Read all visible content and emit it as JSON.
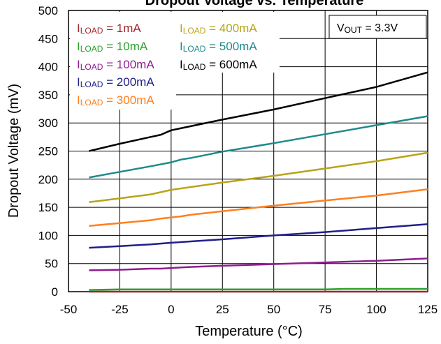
{
  "chart_data": {
    "type": "line",
    "title": "Dropout Voltage vs. Temperature",
    "xlabel": "Temperature (°C)",
    "ylabel": "Dropout Voltage (mV)",
    "xlim": [
      -50,
      125
    ],
    "ylim": [
      0,
      500
    ],
    "x_ticks": [
      "-50",
      "-25",
      "0",
      "25",
      "50",
      "75",
      "100",
      "125"
    ],
    "y_ticks": [
      "0",
      "50",
      "100",
      "150",
      "200",
      "250",
      "300",
      "350",
      "400",
      "450",
      "500"
    ],
    "grid": true,
    "legend_position": "top-left",
    "annotation": {
      "main": "V",
      "sub": "OUT",
      "rest": " =  3.3V"
    },
    "series": [
      {
        "label_main": "I",
        "label_sub": "LOAD",
        "label_rest": " = 1mA",
        "color": "#a0262a",
        "x": [
          -40,
          0,
          50,
          100,
          125
        ],
        "y": [
          0,
          0,
          0,
          0,
          0
        ]
      },
      {
        "label_main": "I",
        "label_sub": "LOAD",
        "label_rest": " = 10mA",
        "color": "#2ca02c",
        "x": [
          -40,
          -25,
          0,
          25,
          50,
          75,
          85,
          100,
          125
        ],
        "y": [
          3,
          4,
          4,
          4,
          4,
          4,
          5,
          5,
          5
        ]
      },
      {
        "label_main": "I",
        "label_sub": "LOAD",
        "label_rest": " = 100mA",
        "color": "#8e1c8e",
        "x": [
          -40,
          -25,
          -10,
          -5,
          0,
          5,
          10,
          25,
          50,
          75,
          100,
          125
        ],
        "y": [
          38,
          39,
          41,
          41,
          42,
          43,
          44,
          46,
          49,
          52,
          55,
          59
        ]
      },
      {
        "label_main": "I",
        "label_sub": "LOAD",
        "label_rest": " = 200mA",
        "color": "#1f1f8a",
        "x": [
          -40,
          -25,
          -10,
          0,
          25,
          50,
          75,
          100,
          125
        ],
        "y": [
          78,
          81,
          84,
          87,
          93,
          100,
          106,
          113,
          120
        ]
      },
      {
        "label_main": "I",
        "label_sub": "LOAD",
        "label_rest": " = 300mA",
        "color": "#ff7f1e",
        "x": [
          -40,
          -25,
          -10,
          -5,
          0,
          5,
          10,
          25,
          50,
          75,
          100,
          125
        ],
        "y": [
          117,
          122,
          127,
          130,
          132,
          134,
          137,
          143,
          153,
          162,
          171,
          182
        ]
      },
      {
        "label_main": "I",
        "label_sub": "LOAD",
        "label_rest": " = 400mA",
        "color": "#b8a418",
        "x": [
          -40,
          -25,
          -10,
          0,
          25,
          50,
          75,
          100,
          125
        ],
        "y": [
          159,
          166,
          173,
          181,
          194,
          206,
          219,
          232,
          247
        ]
      },
      {
        "label_main": "I",
        "label_sub": "LOAD",
        "label_rest": " = 500mA",
        "color": "#1e8a8a",
        "x": [
          -40,
          -25,
          -10,
          0,
          5,
          10,
          25,
          50,
          75,
          100,
          125
        ],
        "y": [
          203,
          213,
          223,
          230,
          235,
          238,
          249,
          264,
          280,
          296,
          312
        ]
      },
      {
        "label_main": "I",
        "label_sub": "LOAD",
        "label_rest": " = 600mA",
        "color": "#000000",
        "x": [
          -40,
          -25,
          -10,
          -5,
          0,
          25,
          50,
          75,
          100,
          125
        ],
        "y": [
          250,
          263,
          275,
          279,
          287,
          306,
          324,
          344,
          364,
          390
        ]
      }
    ]
  }
}
